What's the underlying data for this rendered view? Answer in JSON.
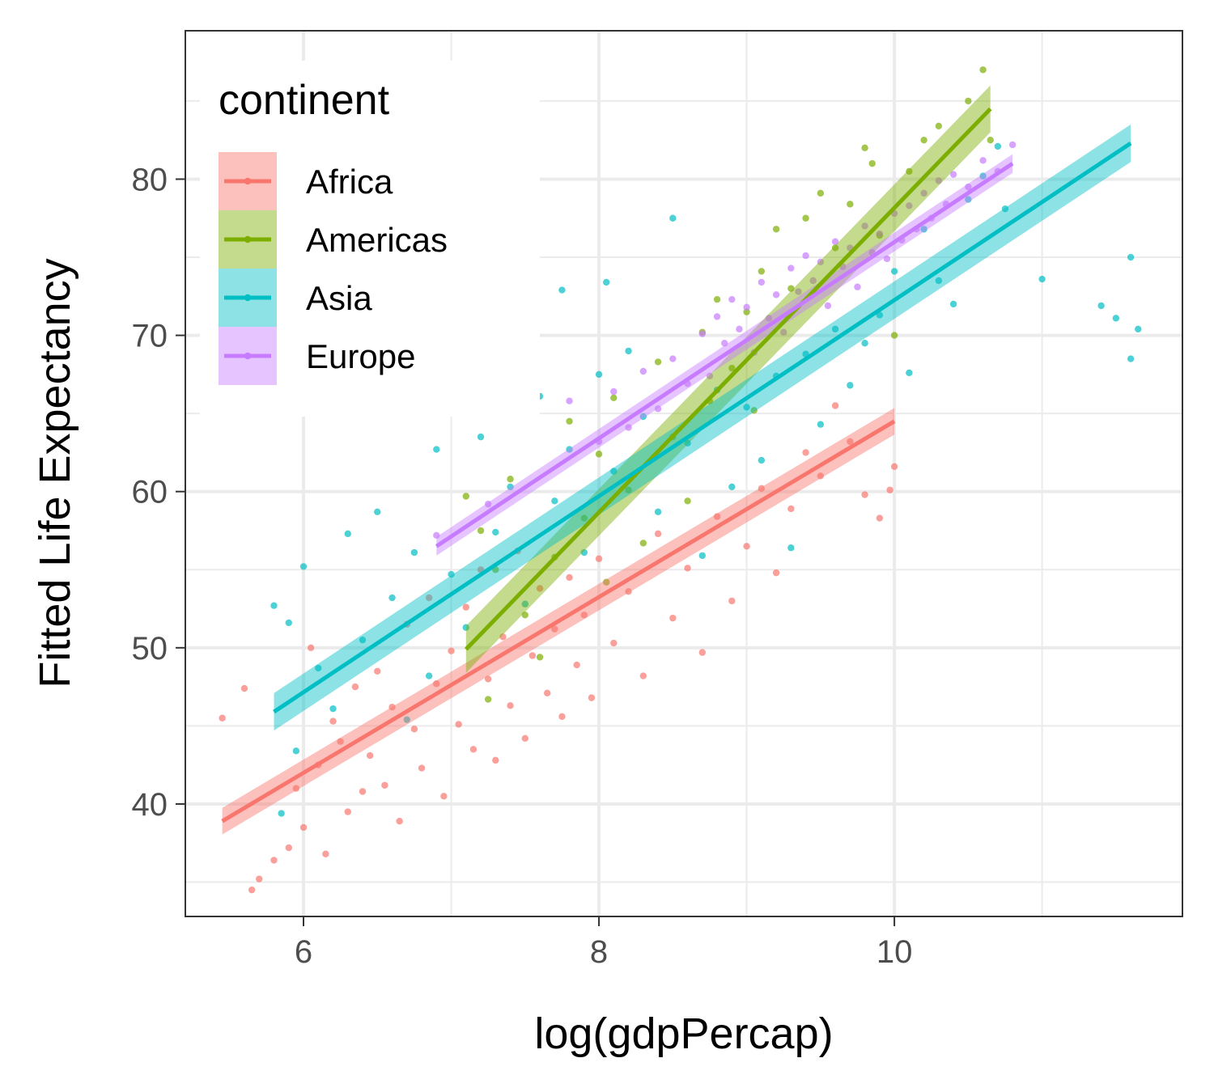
{
  "chart_data": {
    "type": "scatter",
    "xlabel": "log(gdpPercap)",
    "ylabel": "Fitted Life Expectancy",
    "xlim": [
      5.2,
      11.95
    ],
    "ylim": [
      32.8,
      89.5
    ],
    "xticks": [
      6,
      8,
      10
    ],
    "yticks": [
      40,
      50,
      60,
      70,
      80
    ],
    "grid": true,
    "legend": {
      "title": "continent",
      "placement": "top-left"
    },
    "series": [
      {
        "name": "Africa",
        "color": "#F8766D",
        "fit": {
          "x": [
            5.45,
            10.0
          ],
          "y": [
            38.9,
            64.5
          ],
          "band": 0.85
        },
        "points": [
          [
            5.45,
            45.5
          ],
          [
            5.6,
            47.4
          ],
          [
            5.65,
            34.5
          ],
          [
            5.7,
            35.2
          ],
          [
            5.8,
            36.4
          ],
          [
            5.9,
            37.2
          ],
          [
            5.95,
            41.0
          ],
          [
            6.0,
            38.5
          ],
          [
            6.05,
            50.0
          ],
          [
            6.1,
            42.5
          ],
          [
            6.15,
            36.8
          ],
          [
            6.2,
            45.3
          ],
          [
            6.25,
            44.0
          ],
          [
            6.3,
            39.5
          ],
          [
            6.35,
            47.5
          ],
          [
            6.4,
            40.8
          ],
          [
            6.45,
            43.1
          ],
          [
            6.5,
            48.5
          ],
          [
            6.55,
            41.2
          ],
          [
            6.6,
            46.2
          ],
          [
            6.65,
            38.9
          ],
          [
            6.7,
            51.5
          ],
          [
            6.75,
            44.8
          ],
          [
            6.8,
            42.3
          ],
          [
            6.85,
            53.2
          ],
          [
            6.9,
            47.7
          ],
          [
            6.95,
            40.5
          ],
          [
            7.0,
            49.8
          ],
          [
            7.05,
            45.1
          ],
          [
            7.1,
            52.6
          ],
          [
            7.15,
            43.5
          ],
          [
            7.2,
            55.0
          ],
          [
            7.25,
            48.0
          ],
          [
            7.3,
            42.8
          ],
          [
            7.35,
            50.7
          ],
          [
            7.4,
            46.3
          ],
          [
            7.45,
            56.2
          ],
          [
            7.5,
            44.2
          ],
          [
            7.55,
            49.5
          ],
          [
            7.6,
            53.8
          ],
          [
            7.65,
            47.1
          ],
          [
            7.7,
            51.2
          ],
          [
            7.75,
            45.6
          ],
          [
            7.8,
            54.5
          ],
          [
            7.85,
            48.9
          ],
          [
            7.9,
            52.1
          ],
          [
            7.95,
            46.8
          ],
          [
            8.0,
            55.7
          ],
          [
            8.1,
            50.3
          ],
          [
            8.2,
            53.6
          ],
          [
            8.3,
            48.2
          ],
          [
            8.4,
            57.3
          ],
          [
            8.5,
            51.9
          ],
          [
            8.6,
            55.1
          ],
          [
            8.7,
            49.7
          ],
          [
            8.8,
            58.4
          ],
          [
            8.9,
            53.0
          ],
          [
            9.0,
            56.5
          ],
          [
            9.1,
            60.2
          ],
          [
            9.2,
            54.8
          ],
          [
            9.3,
            58.9
          ],
          [
            9.4,
            62.5
          ],
          [
            9.5,
            61.0
          ],
          [
            9.6,
            65.5
          ],
          [
            9.7,
            63.2
          ],
          [
            9.8,
            59.8
          ],
          [
            9.9,
            58.3
          ],
          [
            9.97,
            60.1
          ],
          [
            10.0,
            61.6
          ]
        ]
      },
      {
        "name": "Americas",
        "color": "#7CAE00",
        "fit": {
          "x": [
            7.1,
            10.65
          ],
          "y": [
            49.9,
            84.5
          ],
          "band": 1.5
        },
        "points": [
          [
            7.1,
            59.7
          ],
          [
            7.2,
            57.5
          ],
          [
            7.25,
            46.7
          ],
          [
            7.3,
            55.0
          ],
          [
            7.4,
            60.8
          ],
          [
            7.5,
            52.1
          ],
          [
            7.6,
            49.4
          ],
          [
            7.7,
            55.8
          ],
          [
            7.8,
            64.5
          ],
          [
            7.9,
            58.3
          ],
          [
            8.0,
            62.4
          ],
          [
            8.05,
            54.2
          ],
          [
            8.1,
            66.0
          ],
          [
            8.2,
            60.1
          ],
          [
            8.3,
            56.7
          ],
          [
            8.4,
            68.3
          ],
          [
            8.5,
            63.5
          ],
          [
            8.6,
            59.4
          ],
          [
            8.7,
            70.2
          ],
          [
            8.75,
            65.8
          ],
          [
            8.8,
            72.3
          ],
          [
            8.9,
            67.9
          ],
          [
            9.0,
            71.5
          ],
          [
            9.05,
            65.2
          ],
          [
            9.1,
            74.1
          ],
          [
            9.2,
            76.8
          ],
          [
            9.3,
            73.0
          ],
          [
            9.4,
            77.5
          ],
          [
            9.5,
            79.1
          ],
          [
            9.6,
            75.6
          ],
          [
            9.7,
            78.4
          ],
          [
            9.8,
            82.0
          ],
          [
            9.85,
            81.0
          ],
          [
            9.9,
            76.4
          ],
          [
            10.0,
            70.0
          ],
          [
            10.1,
            80.5
          ],
          [
            10.2,
            82.5
          ],
          [
            10.3,
            83.4
          ],
          [
            10.5,
            85.0
          ],
          [
            10.6,
            87.0
          ],
          [
            10.65,
            82.5
          ]
        ]
      },
      {
        "name": "Asia",
        "color": "#00BFC4",
        "fit": {
          "x": [
            5.8,
            11.6
          ],
          "y": [
            45.9,
            82.3
          ],
          "band": 1.2
        },
        "points": [
          [
            5.8,
            52.7
          ],
          [
            5.85,
            39.4
          ],
          [
            5.9,
            51.6
          ],
          [
            5.95,
            43.4
          ],
          [
            6.0,
            55.2
          ],
          [
            6.1,
            48.7
          ],
          [
            6.2,
            46.1
          ],
          [
            6.3,
            57.3
          ],
          [
            6.4,
            50.5
          ],
          [
            6.5,
            58.7
          ],
          [
            6.6,
            53.2
          ],
          [
            6.7,
            45.4
          ],
          [
            6.75,
            56.1
          ],
          [
            6.85,
            48.2
          ],
          [
            6.9,
            62.7
          ],
          [
            7.0,
            54.7
          ],
          [
            7.1,
            51.3
          ],
          [
            7.2,
            63.5
          ],
          [
            7.3,
            57.4
          ],
          [
            7.4,
            60.3
          ],
          [
            7.5,
            52.8
          ],
          [
            7.6,
            66.1
          ],
          [
            7.7,
            59.4
          ],
          [
            7.75,
            72.9
          ],
          [
            7.8,
            62.7
          ],
          [
            7.9,
            56.1
          ],
          [
            8.0,
            67.5
          ],
          [
            8.05,
            73.4
          ],
          [
            8.1,
            61.3
          ],
          [
            8.2,
            69.0
          ],
          [
            8.3,
            64.8
          ],
          [
            8.4,
            58.7
          ],
          [
            8.5,
            77.5
          ],
          [
            8.6,
            63.1
          ],
          [
            8.7,
            55.9
          ],
          [
            8.8,
            66.5
          ],
          [
            8.9,
            60.3
          ],
          [
            9.0,
            65.4
          ],
          [
            9.1,
            62.0
          ],
          [
            9.2,
            67.4
          ],
          [
            9.3,
            56.4
          ],
          [
            9.4,
            68.8
          ],
          [
            9.5,
            64.3
          ],
          [
            9.6,
            70.4
          ],
          [
            9.7,
            66.8
          ],
          [
            9.8,
            69.5
          ],
          [
            9.9,
            71.3
          ],
          [
            10.0,
            74.1
          ],
          [
            10.1,
            67.6
          ],
          [
            10.2,
            76.8
          ],
          [
            10.3,
            73.5
          ],
          [
            10.4,
            72.0
          ],
          [
            10.5,
            78.7
          ],
          [
            10.6,
            80.2
          ],
          [
            10.7,
            82.1
          ],
          [
            10.75,
            78.1
          ],
          [
            11.0,
            73.6
          ],
          [
            11.4,
            71.9
          ],
          [
            11.5,
            71.1
          ],
          [
            11.6,
            75.0
          ],
          [
            11.65,
            70.4
          ],
          [
            11.6,
            68.5
          ]
        ]
      },
      {
        "name": "Europe",
        "color": "#C77CFF",
        "fit": {
          "x": [
            6.9,
            10.8
          ],
          "y": [
            56.5,
            81.0
          ],
          "band": 0.6
        },
        "points": [
          [
            6.9,
            57.2
          ],
          [
            7.25,
            59.2
          ],
          [
            7.8,
            65.8
          ],
          [
            8.0,
            63.2
          ],
          [
            8.1,
            66.4
          ],
          [
            8.2,
            64.1
          ],
          [
            8.3,
            67.7
          ],
          [
            8.4,
            65.3
          ],
          [
            8.5,
            68.5
          ],
          [
            8.6,
            66.9
          ],
          [
            8.7,
            70.1
          ],
          [
            8.75,
            67.4
          ],
          [
            8.8,
            71.2
          ],
          [
            8.85,
            69.5
          ],
          [
            8.9,
            72.3
          ],
          [
            8.95,
            70.4
          ],
          [
            9.0,
            71.8
          ],
          [
            9.05,
            68.9
          ],
          [
            9.1,
            73.4
          ],
          [
            9.15,
            71.1
          ],
          [
            9.2,
            72.6
          ],
          [
            9.25,
            70.2
          ],
          [
            9.3,
            74.3
          ],
          [
            9.35,
            72.8
          ],
          [
            9.4,
            75.1
          ],
          [
            9.45,
            73.5
          ],
          [
            9.5,
            74.7
          ],
          [
            9.55,
            71.9
          ],
          [
            9.6,
            76.0
          ],
          [
            9.65,
            74.4
          ],
          [
            9.7,
            75.6
          ],
          [
            9.75,
            73.1
          ],
          [
            9.8,
            77.0
          ],
          [
            9.85,
            75.3
          ],
          [
            9.9,
            76.5
          ],
          [
            9.95,
            74.9
          ],
          [
            10.0,
            77.8
          ],
          [
            10.05,
            76.1
          ],
          [
            10.1,
            78.3
          ],
          [
            10.15,
            76.8
          ],
          [
            10.2,
            79.1
          ],
          [
            10.25,
            77.5
          ],
          [
            10.3,
            79.9
          ],
          [
            10.35,
            78.4
          ],
          [
            10.4,
            80.3
          ],
          [
            10.5,
            79.5
          ],
          [
            10.6,
            81.2
          ],
          [
            10.7,
            80.5
          ],
          [
            10.8,
            82.2
          ]
        ]
      }
    ]
  }
}
